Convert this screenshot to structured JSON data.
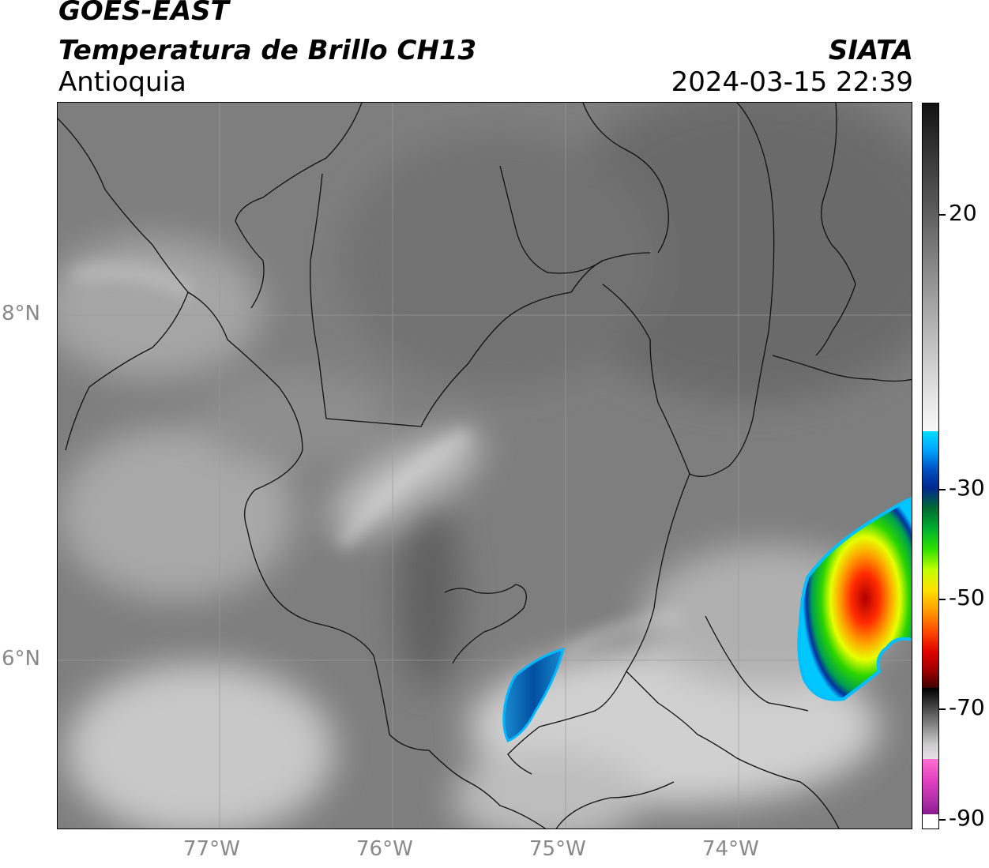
{
  "header": {
    "satellite": "GOES-EAST",
    "product": "Temperatura de Brillo CH13",
    "region": "Antioquia",
    "organization": "SIATA",
    "datetime": "2024-03-15 22:39"
  },
  "map": {
    "lon_ticks": [
      {
        "value": -77,
        "label": "77°W"
      },
      {
        "value": -76,
        "label": "76°W"
      },
      {
        "value": -75,
        "label": "75°W"
      },
      {
        "value": -74,
        "label": "74°W"
      }
    ],
    "lat_ticks": [
      {
        "value": 8,
        "label": "8°N"
      },
      {
        "value": 6,
        "label": "6°N"
      }
    ],
    "lon_range": [
      -77.94,
      -73.0
    ],
    "lat_range": [
      5.0,
      9.22
    ],
    "gridlines": true,
    "features": [
      "coastline",
      "department-borders",
      "convective-cloud-cells"
    ]
  },
  "colorbar": {
    "ticks": [
      {
        "value": 20,
        "label": "20"
      },
      {
        "value": -30,
        "label": "-30"
      },
      {
        "value": -50,
        "label": "-50"
      },
      {
        "value": -70,
        "label": "-70"
      },
      {
        "value": -90,
        "label": "-90"
      }
    ]
  }
}
